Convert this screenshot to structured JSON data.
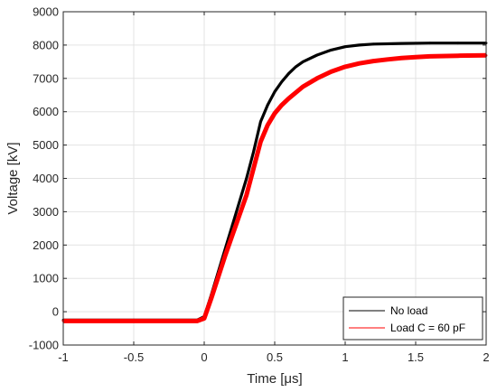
{
  "chart_data": {
    "type": "line",
    "xlabel": "Time [μs]",
    "ylabel": "Voltage [kV]",
    "xlim": [
      -1,
      2
    ],
    "ylim": [
      -1000,
      9000
    ],
    "xticks": [
      -1,
      -0.5,
      0,
      0.5,
      1,
      1.5,
      2
    ],
    "yticks": [
      -1000,
      0,
      1000,
      2000,
      3000,
      4000,
      5000,
      6000,
      7000,
      8000,
      9000
    ],
    "xtick_labels": [
      "-1",
      "-0.5",
      "0",
      "0.5",
      "1",
      "1.5",
      "2"
    ],
    "ytick_labels": [
      "-1000",
      "0",
      "1000",
      "2000",
      "3000",
      "4000",
      "5000",
      "6000",
      "7000",
      "8000",
      "9000"
    ],
    "grid": true,
    "legend_position": "bottom-right",
    "series": [
      {
        "name": "No load",
        "color": "#000000",
        "x": [
          -1,
          -0.5,
          -0.05,
          0,
          0.05,
          0.1,
          0.15,
          0.2,
          0.25,
          0.3,
          0.35,
          0.4,
          0.45,
          0.5,
          0.55,
          0.6,
          0.65,
          0.7,
          0.8,
          0.9,
          1.0,
          1.1,
          1.2,
          1.4,
          1.6,
          1.8,
          2.0
        ],
        "y": [
          -250,
          -250,
          -250,
          -150,
          500,
          1200,
          1900,
          2600,
          3300,
          4000,
          4800,
          5700,
          6200,
          6600,
          6900,
          7150,
          7350,
          7500,
          7700,
          7850,
          7950,
          8000,
          8030,
          8050,
          8060,
          8060,
          8060
        ]
      },
      {
        "name": "Load C = 60 pF",
        "color": "#ff0000",
        "x": [
          -1,
          -0.5,
          -0.05,
          0,
          0.05,
          0.1,
          0.15,
          0.2,
          0.25,
          0.3,
          0.35,
          0.4,
          0.45,
          0.5,
          0.55,
          0.6,
          0.7,
          0.8,
          0.9,
          1.0,
          1.1,
          1.2,
          1.3,
          1.4,
          1.5,
          1.6,
          1.8,
          2.0
        ],
        "y": [
          -280,
          -280,
          -280,
          -200,
          400,
          1050,
          1700,
          2300,
          2900,
          3500,
          4300,
          5100,
          5600,
          5950,
          6200,
          6400,
          6750,
          7000,
          7200,
          7350,
          7450,
          7520,
          7570,
          7610,
          7640,
          7660,
          7680,
          7690
        ]
      }
    ]
  }
}
